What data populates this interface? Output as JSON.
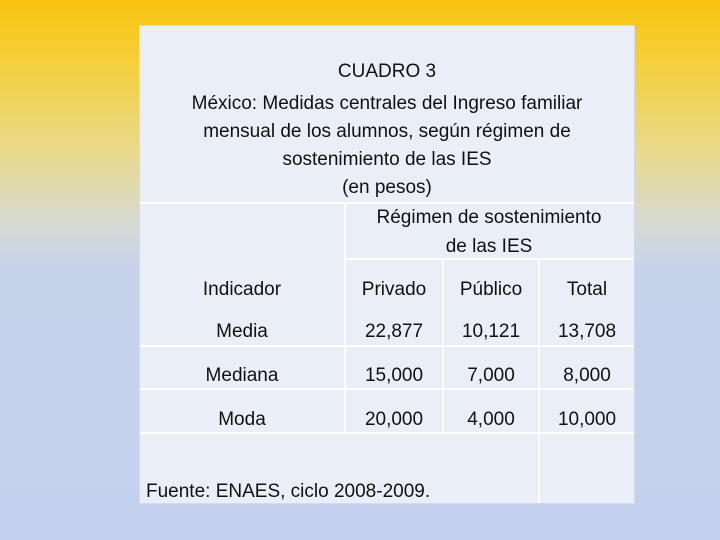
{
  "table": {
    "title_lines": [
      "CUADRO 3",
      "México: Medidas centrales del Ingreso familiar",
      "mensual de los alumnos, según régimen de",
      "sostenimiento de las IES",
      "(en pesos)"
    ],
    "group_header_lines": [
      "Régimen de sostenimiento",
      "de las IES"
    ],
    "columns": [
      "Indicador",
      "Privado",
      "Público",
      "Total"
    ],
    "rows": [
      {
        "label": "Media",
        "values": [
          "22,877",
          "10,121",
          "13,708"
        ]
      },
      {
        "label": "Mediana",
        "values": [
          "15,000",
          "7,000",
          "8,000"
        ]
      },
      {
        "label": "Moda",
        "values": [
          "20,000",
          "4,000",
          "10,000"
        ]
      }
    ],
    "source": "Fuente: ENAES, ciclo 2008-2009."
  }
}
